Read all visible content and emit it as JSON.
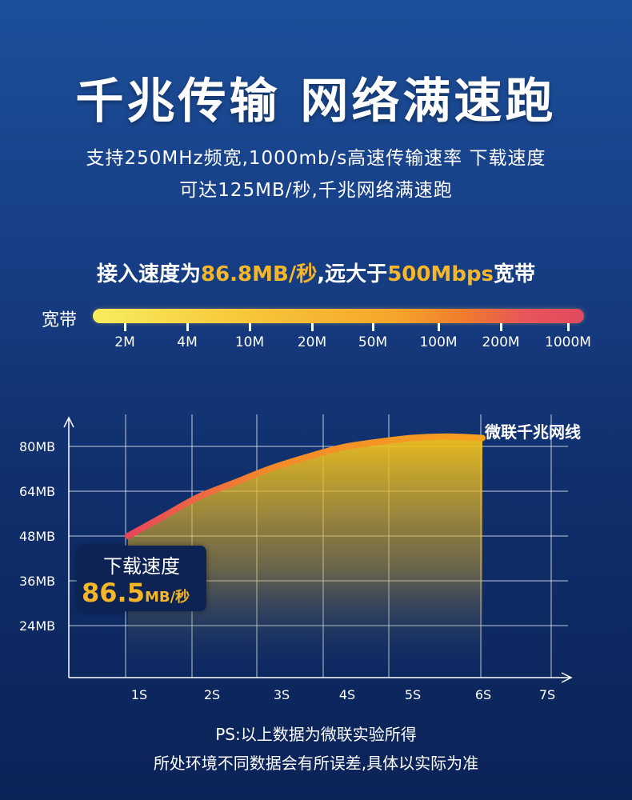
{
  "header": {
    "title": "千兆传输 网络满速跑",
    "subtitle_line1": "支持250MHz频宽,1000mb/s高速传输速率 下载速度",
    "subtitle_line2": "可达125MB/秒,千兆网络满速跑"
  },
  "speed_line": {
    "part1": "接入速度为",
    "value1": "86.8MB/秒",
    "part2": ",远大于",
    "value2": "500Mbps",
    "part3": "宽带"
  },
  "bandwidth_bar": {
    "label": "宽带",
    "ticks": [
      "2M",
      "4M",
      "10M",
      "20M",
      "50M",
      "100M",
      "200M",
      "1000M"
    ],
    "colors": [
      "#f7ed5e",
      "#f5a52a",
      "#e24a60"
    ]
  },
  "chart_data": {
    "type": "area",
    "title": "",
    "xlabel": "",
    "ylabel": "",
    "x_ticks": [
      "1S",
      "2S",
      "3S",
      "4S",
      "5S",
      "6S",
      "7S"
    ],
    "y_ticks": [
      "80MB",
      "64MB",
      "48MB",
      "36MB",
      "24MB"
    ],
    "series": [
      {
        "name": "微联千兆网线",
        "x": [
          1,
          1.5,
          2,
          2.5,
          3,
          3.5,
          4,
          4.5,
          5,
          5.5,
          6
        ],
        "y": [
          48,
          55,
          62,
          67,
          72,
          76,
          79.5,
          81.5,
          83,
          83.5,
          83
        ]
      }
    ],
    "grid": true,
    "colors": {
      "line_start": "#e8455a",
      "line_end": "#f5a020",
      "fill": "#f2c21c"
    }
  },
  "callout": {
    "title": "下载速度",
    "value": "86.5",
    "unit": "MB/秒"
  },
  "notes": {
    "line1": "PS:以上数据为微联实验所得",
    "line2": "所处环境不同数据会有所误差,具体以实际为准"
  }
}
